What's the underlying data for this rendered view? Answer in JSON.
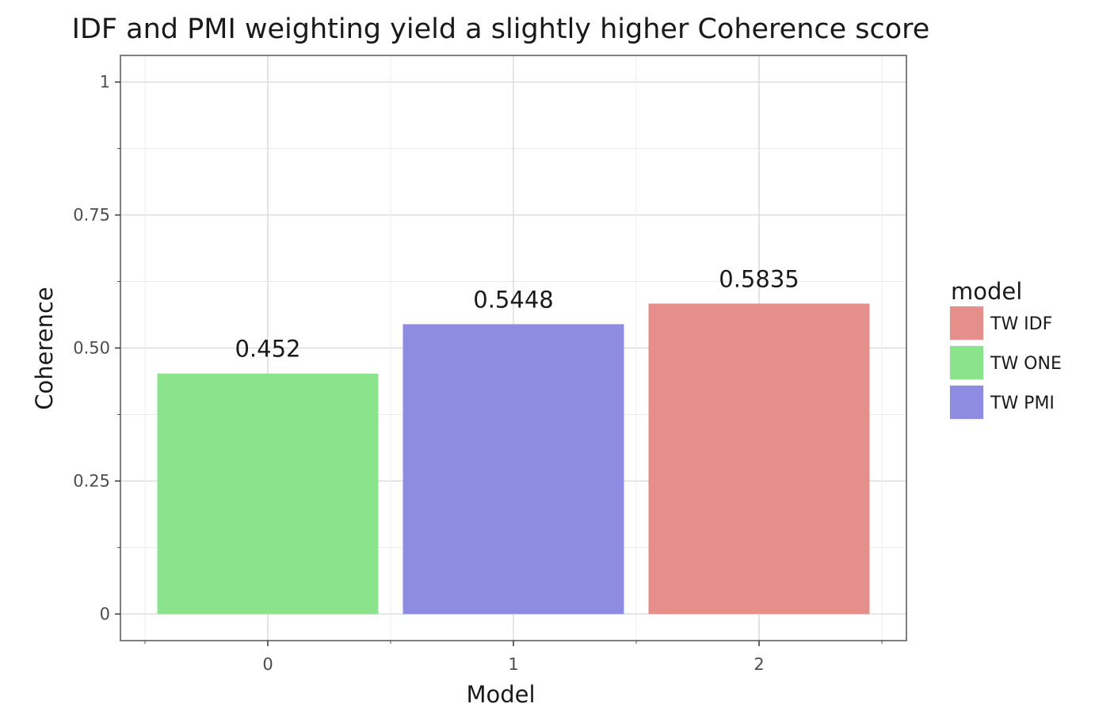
{
  "chart_data": {
    "type": "bar",
    "title": "IDF and PMI weighting yield a slightly higher Coherence score",
    "xlabel": "Model",
    "ylabel": "Coherence",
    "categories": [
      "0",
      "1",
      "2"
    ],
    "values": [
      0.452,
      0.5448,
      0.5835
    ],
    "value_labels": [
      "0.452",
      "0.5448",
      "0.5835"
    ],
    "bar_series": [
      "TW ONE",
      "TW PMI",
      "TW IDF"
    ],
    "ylim": [
      -0.05,
      1.05
    ],
    "yticks": [
      0,
      0.25,
      0.5,
      0.75,
      1
    ],
    "ytick_labels": [
      "0",
      "0.25",
      "0.50",
      "0.75",
      "1"
    ],
    "grid": true,
    "legend": {
      "title": "model",
      "placement": "right",
      "entries": [
        {
          "name": "TW IDF",
          "color": "#e68f8a"
        },
        {
          "name": "TW ONE",
          "color": "#8be38c"
        },
        {
          "name": "TW PMI",
          "color": "#8e8be2"
        }
      ]
    },
    "colors": {
      "TW IDF": "#e68f8a",
      "TW ONE": "#8be38c",
      "TW PMI": "#8e8be2"
    }
  }
}
